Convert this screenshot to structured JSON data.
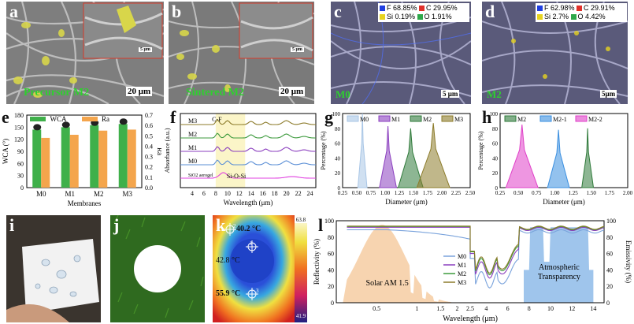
{
  "figure": {
    "panels": {
      "a": {
        "letter": "a",
        "caption": "Precursor M2",
        "scale": "20 μm",
        "inset_scale": "5 μm"
      },
      "b": {
        "letter": "b",
        "caption": "Sintered M2",
        "scale": "20 μm",
        "inset_scale": "5 μm"
      },
      "c": {
        "letter": "c",
        "caption": "M0",
        "scale": "5 μm",
        "elements": [
          "F 68.85%",
          "C 29.95%",
          "Si 0.19%",
          "O 1.91%"
        ]
      },
      "d": {
        "letter": "d",
        "caption": "M2",
        "scale": "5μm",
        "elements": [
          "F 62.98%",
          "C 29.91%",
          "Si 2.7%",
          "O 4.42%"
        ]
      },
      "i": {
        "letter": "i"
      },
      "j": {
        "letter": "j"
      },
      "k": {
        "letter": "k",
        "readings": [
          "40.2 °C",
          "42.8 °C",
          "55.9 °C"
        ],
        "scale_max": "63.8",
        "scale_min": "41.9",
        "markers": [
          "1",
          "2",
          "3"
        ]
      }
    },
    "element_colors": {
      "F": "#1f3ee0",
      "C": "#e0302a",
      "Si": "#e6d31f",
      "O": "#2ea84a"
    }
  },
  "chart_data": [
    {
      "panel": "e",
      "type": "bar",
      "categories": [
        "M0",
        "M1",
        "M2",
        "M3"
      ],
      "series": [
        {
          "name": "WCA",
          "values": [
            144,
            150,
            155,
            158
          ],
          "axis": "left",
          "color": "#3fb04a"
        },
        {
          "name": "Ra",
          "values": [
            0.48,
            0.51,
            0.55,
            0.56
          ],
          "axis": "right",
          "color": "#f4a54c"
        }
      ],
      "xlabel": "Membranes",
      "ylabel": "WCA (°)",
      "y2label": "Ra",
      "ylim": [
        0,
        180
      ],
      "y2lim": [
        0.0,
        0.7
      ],
      "yticks": [
        "0",
        "30",
        "60",
        "90",
        "120",
        "150",
        "180"
      ],
      "y2ticks": [
        "0.0",
        "0.1",
        "0.2",
        "0.3",
        "0.4",
        "0.5",
        "0.6",
        "0.7"
      ]
    },
    {
      "panel": "f",
      "type": "line",
      "series_labels": [
        "M3",
        "M2",
        "M1",
        "M0",
        "SiO2 aerogel"
      ],
      "colors": [
        "#8c7b2a",
        "#3c9a3c",
        "#8b3fbf",
        "#5b8fd6",
        "#e040e0"
      ],
      "annotations": [
        "C-F",
        "Si-O-Si"
      ],
      "xlabel": "Wavelength (μm)",
      "ylabel": "Absorbance (a.u.)",
      "xlim": [
        2,
        25
      ],
      "xticks": [
        "4",
        "6",
        "8",
        "10",
        "12",
        "14",
        "16",
        "18",
        "20",
        "22",
        "24"
      ],
      "highlight_range": [
        8,
        13
      ]
    },
    {
      "panel": "g",
      "type": "area",
      "series": [
        {
          "name": "M0",
          "peak_x": 0.6,
          "peak_y": 100,
          "color": "#a9c6e6"
        },
        {
          "name": "M1",
          "peak_x": 1.05,
          "peak_y": 83,
          "color": "#8b3fbf"
        },
        {
          "name": "M2",
          "peak_x": 1.45,
          "peak_y": 80,
          "color": "#2f7a3a"
        },
        {
          "name": "M3",
          "peak_x": 1.85,
          "peak_y": 87,
          "color": "#8c7b2a"
        }
      ],
      "xlabel": "Diameter (μm)",
      "ylabel": "Percentage (%)",
      "xlim": [
        0.25,
        2.5
      ],
      "ylim": [
        0,
        100
      ],
      "xticks": [
        "0.25",
        "0.50",
        "0.75",
        "1.00",
        "1.25",
        "1.50",
        "1.75",
        "2.00",
        "2.25",
        "2.50"
      ],
      "yticks": [
        "0",
        "20",
        "40",
        "60",
        "80",
        "100"
      ]
    },
    {
      "panel": "h",
      "type": "area",
      "series": [
        {
          "name": "M2",
          "peak_x": 1.45,
          "peak_y": 80,
          "color": "#2f7a3a"
        },
        {
          "name": "M2-1",
          "peak_x": 1.05,
          "peak_y": 78,
          "color": "#3a8fe0"
        },
        {
          "name": "M2-2",
          "peak_x": 0.55,
          "peak_y": 85,
          "color": "#e040c8"
        }
      ],
      "xlabel": "Diameter (μm)",
      "ylabel": "Percentage (%)",
      "xlim": [
        0.25,
        2.0
      ],
      "ylim": [
        0,
        100
      ],
      "xticks": [
        "0.25",
        "0.50",
        "0.75",
        "1.00",
        "1.25",
        "1.50",
        "1.75",
        "2.00"
      ],
      "yticks": [
        "0",
        "20",
        "40",
        "60",
        "80",
        "100"
      ]
    },
    {
      "panel": "l",
      "type": "line",
      "series": [
        {
          "name": "M0",
          "color": "#7aa3dc"
        },
        {
          "name": "M1",
          "color": "#8b3fbf"
        },
        {
          "name": "M2",
          "color": "#3c9a3c"
        },
        {
          "name": "M3",
          "color": "#8c7b2a"
        }
      ],
      "annotations": [
        "Solar AM 1.5",
        "Atmospheric Transparency"
      ],
      "xlabel": "Wavelength (μm)",
      "ylabel": "Reflectivity (%)",
      "y2label": "Emissivity (%)",
      "xticks": [
        "0.5",
        "1",
        "1.5",
        "2",
        "2.5",
        "4",
        "6",
        "8",
        "10",
        "12",
        "14"
      ],
      "yticks": [
        "0",
        "20",
        "40",
        "60",
        "80",
        "100"
      ],
      "y2ticks": [
        "0",
        "20",
        "40",
        "60",
        "80",
        "100"
      ]
    }
  ]
}
